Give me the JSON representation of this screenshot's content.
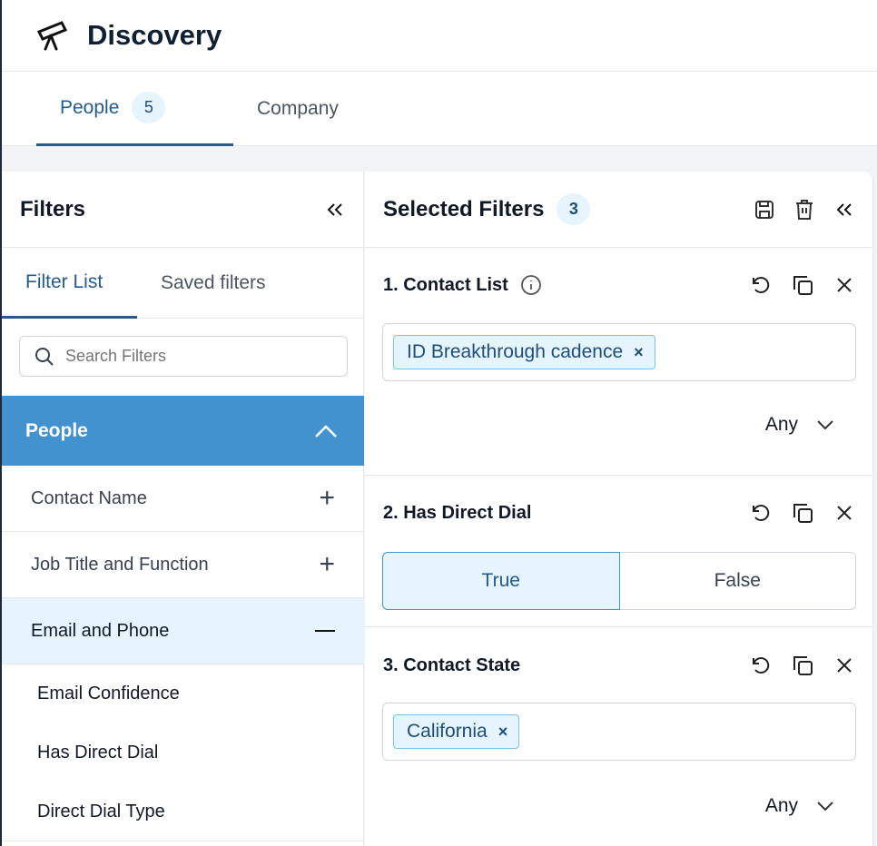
{
  "app": {
    "title": "Discovery",
    "icon": "telescope-icon"
  },
  "tabs": [
    {
      "label": "People",
      "count": "5"
    },
    {
      "label": "Company"
    }
  ],
  "filters_panel": {
    "title": "Filters",
    "tabs": [
      "Filter List",
      "Saved filters"
    ],
    "search_placeholder": "Search Filters",
    "section": "People",
    "items": [
      "Contact Name",
      "Job Title and Function",
      "Email and Phone"
    ],
    "subitems": [
      "Email Confidence",
      "Has Direct Dial",
      "Direct Dial Type"
    ]
  },
  "selected": {
    "title": "Selected Filters",
    "count": "3",
    "filters": [
      {
        "title": "1. Contact List",
        "tag": "ID Breakthrough cadence",
        "match": "Any"
      },
      {
        "title": "2. Has Direct Dial",
        "true_label": "True",
        "false_label": "False",
        "selected": "True"
      },
      {
        "title": "3. Contact State",
        "tag": "California",
        "match": "Any"
      }
    ]
  },
  "colors": {
    "accent": "#245a8d",
    "section_bg": "#4392d0",
    "badge_bg": "#e6f4fd"
  }
}
